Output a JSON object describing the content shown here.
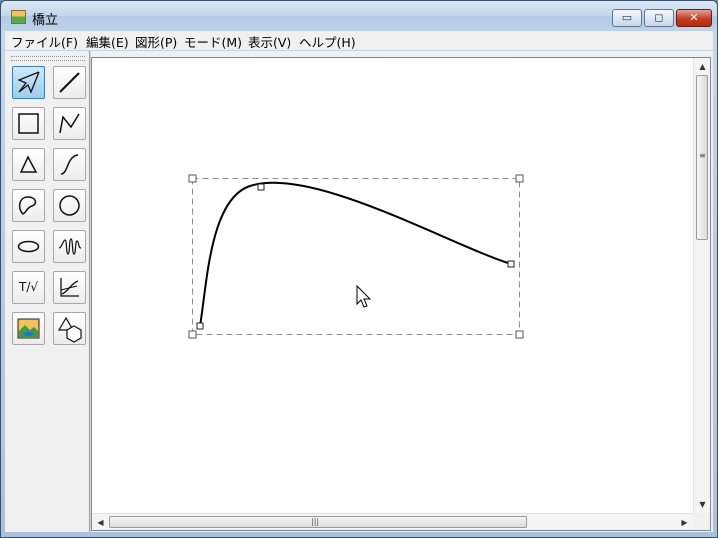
{
  "window": {
    "title": "橋立",
    "accent": "#c43c24"
  },
  "caption_buttons": {
    "minimize": "▭",
    "maximize": "◻",
    "close": "✕"
  },
  "menu": [
    {
      "label": "ファイル(F)"
    },
    {
      "label": "編集(E)"
    },
    {
      "label": "図形(P)"
    },
    {
      "label": "モード(M)"
    },
    {
      "label": "表示(V)"
    },
    {
      "label": "ヘルプ(H)"
    }
  ],
  "tools": [
    {
      "name": "select",
      "icon": "select-arrow-icon",
      "active": true
    },
    {
      "name": "line",
      "icon": "line-icon"
    },
    {
      "name": "rectangle",
      "icon": "rectangle-icon"
    },
    {
      "name": "polyline",
      "icon": "polyline-icon"
    },
    {
      "name": "triangle",
      "icon": "triangle-icon"
    },
    {
      "name": "curve",
      "icon": "curve-icon"
    },
    {
      "name": "freeform-closed",
      "icon": "freeform-icon"
    },
    {
      "name": "circle",
      "icon": "circle-icon"
    },
    {
      "name": "ellipse",
      "icon": "ellipse-icon"
    },
    {
      "name": "spring",
      "icon": "spring-icon"
    },
    {
      "name": "text-formula",
      "icon": "text-formula-icon",
      "label": "T/√"
    },
    {
      "name": "graph",
      "icon": "graph-icon"
    },
    {
      "name": "image",
      "icon": "image-icon"
    },
    {
      "name": "shapes",
      "icon": "shapes-icon"
    }
  ],
  "scrollbar": {
    "up": "▲",
    "down": "▼",
    "left": "◀",
    "right": "▶",
    "grip": "≡",
    "hgrip": "|||"
  }
}
